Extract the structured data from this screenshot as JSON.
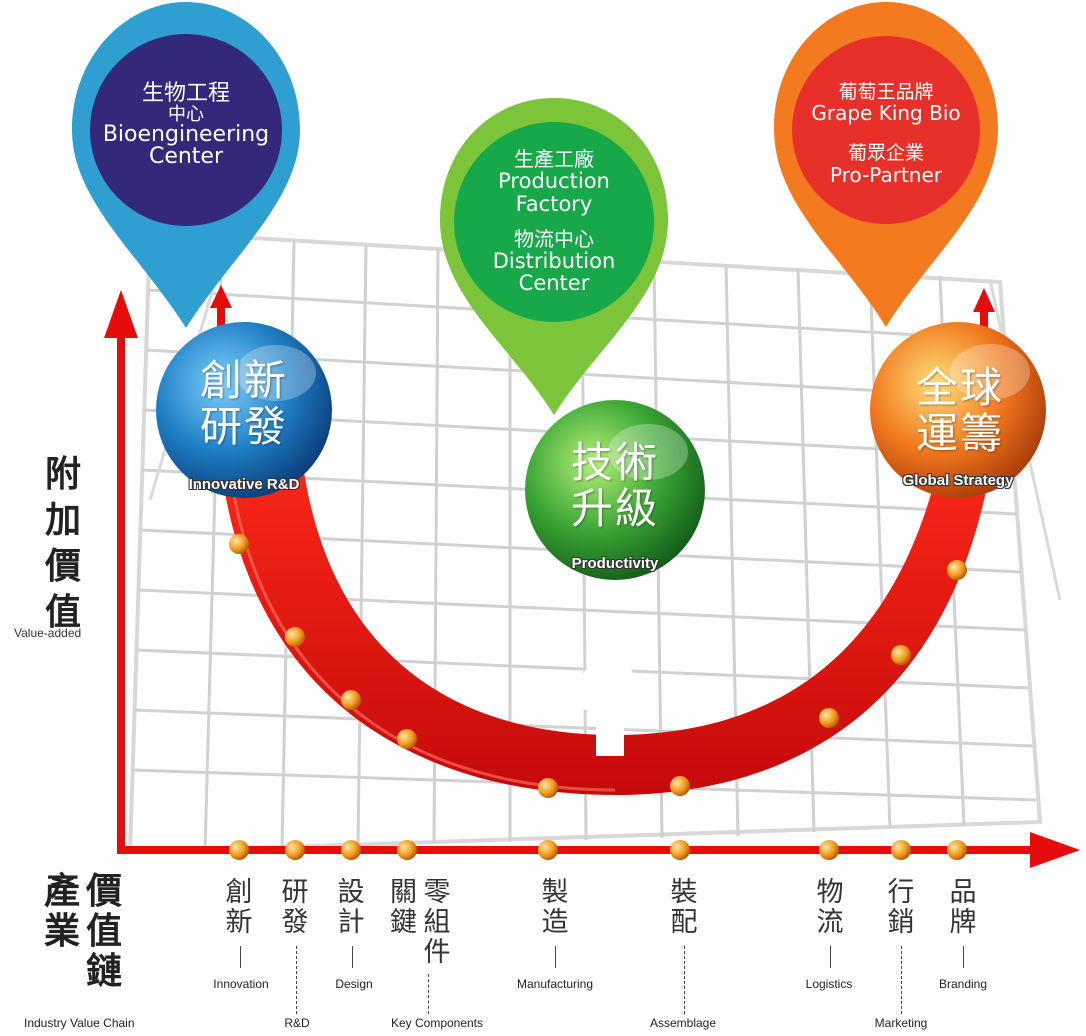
{
  "axes": {
    "y_label_chars": [
      "附",
      "加",
      "價",
      "值"
    ],
    "y_label_en": "Value-added",
    "x_label_chars": [
      "產",
      "業",
      "價",
      "值",
      "鏈"
    ],
    "x_label_en": "Industry Value Chain"
  },
  "pins": [
    {
      "lines": [
        "生物工程",
        "中心",
        "Bioengineering",
        "Center"
      ],
      "color": "#2e9fd0",
      "inner": "#33287a"
    },
    {
      "lines": [
        "生產工廠",
        "Production",
        "Factory",
        "物流中心",
        "Distribution",
        "Center"
      ],
      "color": "#7cc43a",
      "inner": "#17a84a"
    },
    {
      "lines": [
        "葡萄王品牌",
        "Grape King Bio",
        "葡眾企業",
        "Pro-Partner"
      ],
      "color": "#f47a20",
      "inner": "#e8302a"
    }
  ],
  "balls": [
    {
      "text_lines": [
        "創新",
        "研發"
      ],
      "sub": "Innovative R&D",
      "color": "#1f7fc4"
    },
    {
      "text_lines": [
        "技術",
        "升級"
      ],
      "sub": "Productivity",
      "color": "#3aa534"
    },
    {
      "text_lines": [
        "全球",
        "運籌"
      ],
      "sub": "Global Strategy",
      "color": "#f0781e"
    }
  ],
  "stages": [
    {
      "chars": [
        "創",
        "新"
      ],
      "en": "Innovation"
    },
    {
      "chars": [
        "研",
        "發"
      ],
      "en": "R&D"
    },
    {
      "chars": [
        "設",
        "計"
      ],
      "en": "Design"
    },
    {
      "chars": [
        "關鍵",
        "零組件"
      ],
      "en": "Key Components"
    },
    {
      "chars": [
        "製",
        "造"
      ],
      "en": "Manufacturing"
    },
    {
      "chars": [
        "裝",
        "配"
      ],
      "en": "Assemblage"
    },
    {
      "chars": [
        "物",
        "流"
      ],
      "en": "Logistics"
    },
    {
      "chars": [
        "行",
        "銷"
      ],
      "en": "Marketing"
    },
    {
      "chars": [
        "品",
        "牌"
      ],
      "en": "Branding"
    }
  ]
}
